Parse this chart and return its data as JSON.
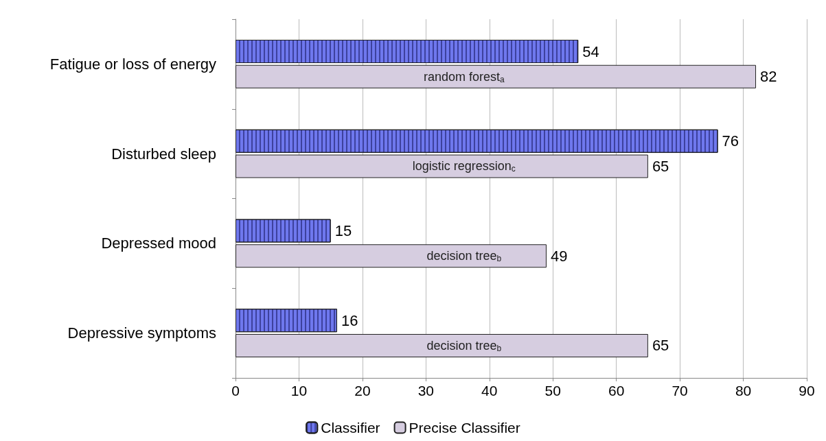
{
  "chart_data": {
    "type": "bar",
    "orientation": "horizontal",
    "categories": [
      "Fatigue or loss of energy",
      "Disturbed sleep",
      "Depressed mood",
      "Depressive symptoms"
    ],
    "series": [
      {
        "name": "Classifier",
        "color": "#6f78ee",
        "values": [
          54,
          76,
          15,
          16
        ]
      },
      {
        "name": "Precise Classifier",
        "color": "#d6cde0",
        "values": [
          82,
          65,
          49,
          65
        ]
      }
    ],
    "xlim": [
      0,
      90
    ],
    "xticks": [
      0,
      10,
      20,
      30,
      40,
      50,
      60,
      70,
      80,
      90
    ],
    "grid": "x",
    "legend": "bottom",
    "data_labels": true,
    "annotations": [
      "random forest$_{a}$",
      "logistic regression$_{c}$",
      "decision tree$_{b}$",
      "decision tree$_{b}$"
    ]
  }
}
